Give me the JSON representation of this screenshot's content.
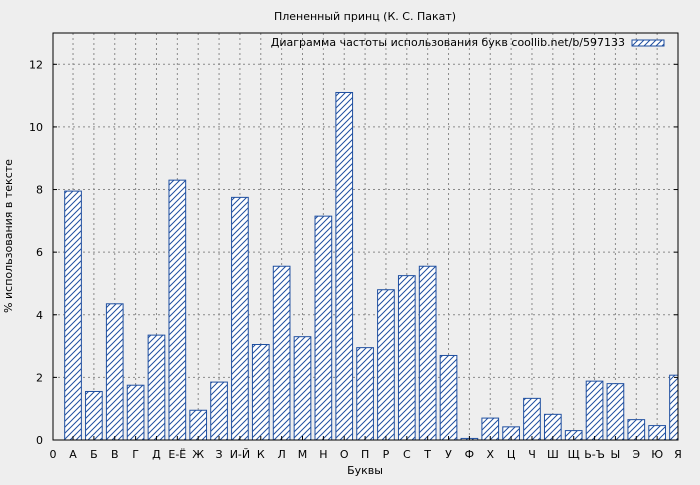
{
  "chart_data": {
    "type": "bar",
    "title": "Плененный принц (К. С. Пакат)",
    "xlabel": "Буквы",
    "ylabel": "% использования в тексте",
    "legend": {
      "label": "Диаграмма частоты использования букв coollib.net/b/597133",
      "position": "top-right"
    },
    "ylim": [
      0,
      13
    ],
    "yticks": [
      0,
      2,
      4,
      6,
      8,
      10,
      12
    ],
    "x_start_label": "0",
    "grid": true,
    "colors": {
      "bar_stroke": "#1f4fa0",
      "hatch": "#1f4fa0",
      "bar_fill": "#ffffff",
      "background": "#eeeeee",
      "plot_background": "#eeeeee",
      "grid": "#8a8a8a"
    },
    "categories": [
      "А",
      "Б",
      "В",
      "Г",
      "Д",
      "Е-Ё",
      "Ж",
      "З",
      "И-Й",
      "К",
      "Л",
      "М",
      "Н",
      "О",
      "П",
      "Р",
      "С",
      "Т",
      "У",
      "Ф",
      "Х",
      "Ц",
      "Ч",
      "Ш",
      "Щ",
      "Ь-Ъ",
      "Ы",
      "Э",
      "Ю",
      "Я"
    ],
    "values": [
      7.95,
      1.55,
      4.35,
      1.75,
      3.35,
      8.3,
      0.95,
      1.85,
      7.75,
      3.05,
      5.55,
      3.3,
      7.15,
      11.1,
      2.95,
      4.8,
      5.25,
      5.55,
      2.7,
      0.05,
      0.7,
      0.42,
      1.33,
      0.82,
      0.3,
      1.88,
      1.8,
      0.65,
      0.46,
      2.07
    ]
  }
}
